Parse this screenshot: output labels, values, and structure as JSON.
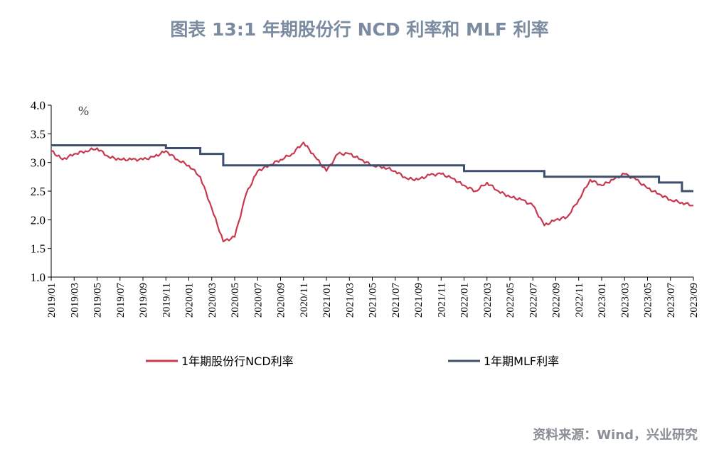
{
  "title": "图表 13:1 年期股份行 NCD 利率和 MLF 利率",
  "source": "资料来源：Wind，兴业研究",
  "colors": {
    "ncd": "#c8384f",
    "mlf": "#3d4f6e",
    "title": "#7b8ba0",
    "axis": "#000000"
  },
  "chart_data": {
    "type": "line",
    "title": "图表 13:1 年期股份行 NCD 利率和 MLF 利率",
    "unit": "%",
    "ylim": [
      1.0,
      4.0
    ],
    "yticks": [
      "4.0",
      "3.5",
      "3.0",
      "2.5",
      "2.0",
      "1.5",
      "1.0"
    ],
    "xticks": [
      "2019/01",
      "2019/03",
      "2019/05",
      "2019/07",
      "2019/09",
      "2019/11",
      "2020/01",
      "2020/03",
      "2020/05",
      "2020/07",
      "2020/09",
      "2020/11",
      "2021/01",
      "2021/03",
      "2021/05",
      "2021/07",
      "2021/09",
      "2021/11",
      "2022/01",
      "2022/03",
      "2022/05",
      "2022/07",
      "2022/09",
      "2022/11",
      "2023/01",
      "2023/03",
      "2023/05",
      "2023/07",
      "2023/09"
    ],
    "grid": false,
    "legend_position": "bottom",
    "series": [
      {
        "name": "1年期股份行NCD利率",
        "x": [
          "2019/01",
          "2019/02",
          "2019/03",
          "2019/04",
          "2019/05",
          "2019/06",
          "2019/07",
          "2019/08",
          "2019/09",
          "2019/10",
          "2019/11",
          "2019/12",
          "2020/01",
          "2020/02",
          "2020/03",
          "2020/04",
          "2020/05",
          "2020/06",
          "2020/07",
          "2020/08",
          "2020/09",
          "2020/10",
          "2020/11",
          "2020/12",
          "2021/01",
          "2021/02",
          "2021/03",
          "2021/04",
          "2021/05",
          "2021/06",
          "2021/07",
          "2021/08",
          "2021/09",
          "2021/10",
          "2021/11",
          "2021/12",
          "2022/01",
          "2022/02",
          "2022/03",
          "2022/04",
          "2022/05",
          "2022/06",
          "2022/07",
          "2022/08",
          "2022/09",
          "2022/10",
          "2022/11",
          "2022/12",
          "2023/01",
          "2023/02",
          "2023/03",
          "2023/04",
          "2023/05",
          "2023/06",
          "2023/07",
          "2023/08",
          "2023/09"
        ],
        "values": [
          3.2,
          3.05,
          3.15,
          3.2,
          3.25,
          3.1,
          3.05,
          3.05,
          3.05,
          3.1,
          3.2,
          3.05,
          2.95,
          2.75,
          2.2,
          1.62,
          1.7,
          2.45,
          2.85,
          2.95,
          3.05,
          3.15,
          3.35,
          3.1,
          2.85,
          3.15,
          3.15,
          3.05,
          2.95,
          2.92,
          2.85,
          2.72,
          2.7,
          2.78,
          2.8,
          2.72,
          2.6,
          2.5,
          2.65,
          2.5,
          2.4,
          2.35,
          2.25,
          1.9,
          2.0,
          2.05,
          2.35,
          2.7,
          2.6,
          2.7,
          2.8,
          2.7,
          2.55,
          2.45,
          2.35,
          2.3,
          2.25
        ]
      },
      {
        "name": "1年期MLF利率",
        "x": [
          "2019/01",
          "2019/11",
          "2020/02",
          "2020/04",
          "2022/01",
          "2022/08",
          "2023/06",
          "2023/08",
          "2023/09"
        ],
        "values": [
          3.3,
          3.25,
          3.15,
          2.95,
          2.85,
          2.75,
          2.65,
          2.5,
          2.5
        ]
      }
    ]
  }
}
